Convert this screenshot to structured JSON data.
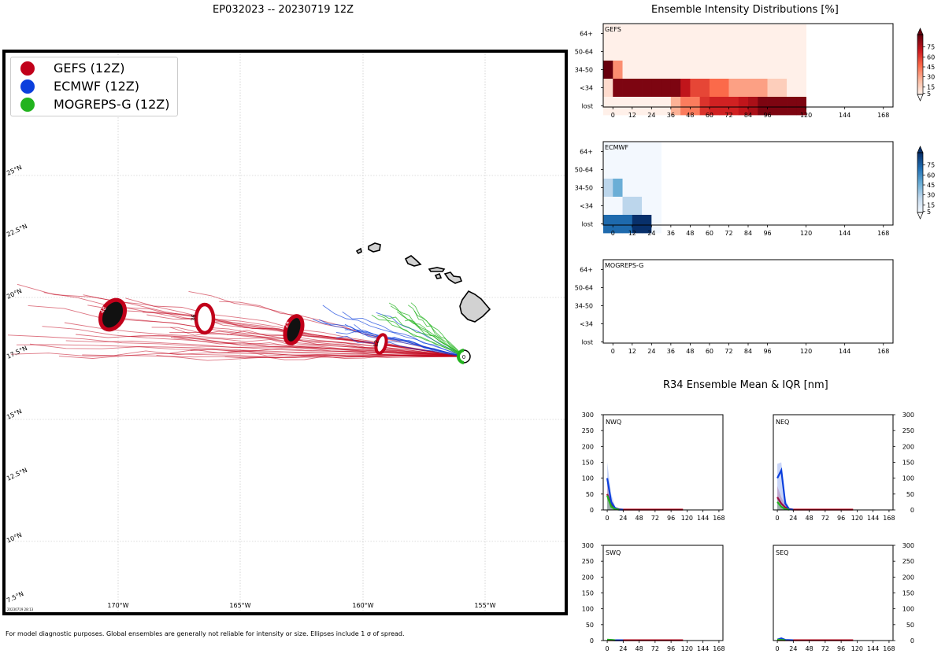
{
  "page": {
    "map_title": "EP032023 -- 20230719 12Z",
    "intensity_title": "Ensemble Intensity Distributions [%]",
    "r34_title": "R34 Ensemble Mean & IQR [nm]",
    "footer_note": "For model diagnostic purposes. Global ensembles are generally not reliable for intensity or size. Ellipses include 1 σ of spread.",
    "map_stamp": "20230719 28:13"
  },
  "legend": [
    {
      "label": "GEFS (12Z)",
      "color": "#c1001a"
    },
    {
      "label": "ECMWF (12Z)",
      "color": "#0b3fdd"
    },
    {
      "label": "MOGREPS-G (12Z)",
      "color": "#22b31e"
    }
  ],
  "map": {
    "lon_labels": [
      "170°W",
      "165°W",
      "160°W",
      "155°W"
    ],
    "lat_labels": [
      "25°N",
      "22.5°N",
      "20°N",
      "17.5°N",
      "15°N",
      "12.5°N",
      "10°N",
      "7.5°N"
    ],
    "forecast_hour_labels": [
      "48",
      "36",
      "24",
      "12",
      "0"
    ]
  },
  "chart_data": [
    {
      "type": "heatmap",
      "panel": "GEFS",
      "title": "Ensemble Intensity Distributions [%]",
      "rows": [
        "64+",
        "50-64",
        "34-50",
        "<34",
        "lost"
      ],
      "x_ticks": [
        0,
        12,
        24,
        36,
        48,
        60,
        72,
        84,
        96,
        120,
        144,
        168
      ],
      "xlim": [
        -6,
        174
      ],
      "x_starts": [
        -6,
        0,
        6,
        12,
        18,
        24,
        30,
        36,
        42,
        48,
        54,
        60,
        66,
        72,
        78,
        84,
        90,
        96,
        102,
        108,
        114
      ],
      "bin_width": 6,
      "values": [
        [
          2,
          2,
          2,
          2,
          2,
          2,
          2,
          2,
          2,
          2,
          2,
          2,
          2,
          2,
          2,
          2,
          2,
          2,
          2,
          2,
          2
        ],
        [
          2,
          2,
          2,
          2,
          2,
          2,
          2,
          2,
          2,
          2,
          2,
          2,
          2,
          2,
          2,
          2,
          2,
          2,
          2,
          2,
          2
        ],
        [
          90,
          35,
          2,
          2,
          2,
          2,
          2,
          2,
          2,
          2,
          2,
          2,
          2,
          2,
          2,
          2,
          2,
          2,
          2,
          2,
          2
        ],
        [
          10,
          85,
          85,
          85,
          85,
          85,
          85,
          85,
          70,
          55,
          55,
          45,
          45,
          30,
          30,
          30,
          30,
          15,
          15,
          2,
          2
        ],
        [
          2,
          2,
          2,
          2,
          2,
          2,
          2,
          25,
          40,
          40,
          60,
          65,
          65,
          65,
          70,
          75,
          85,
          85,
          85,
          85,
          85
        ]
      ],
      "colorbar_ticks": [
        5,
        15,
        30,
        45,
        60,
        75
      ]
    },
    {
      "type": "heatmap",
      "panel": "ECMWF",
      "rows": [
        "64+",
        "50-64",
        "34-50",
        "<34",
        "lost"
      ],
      "x_ticks": [
        0,
        12,
        24,
        36,
        48,
        60,
        72,
        84,
        96,
        120,
        144,
        168
      ],
      "xlim": [
        -6,
        174
      ],
      "x_starts": [
        -6,
        0,
        6,
        12,
        18,
        24
      ],
      "bin_width": 6,
      "values": [
        [
          2,
          2,
          2,
          2,
          2,
          2
        ],
        [
          2,
          2,
          2,
          2,
          2,
          2
        ],
        [
          25,
          45,
          2,
          2,
          2,
          2
        ],
        [
          2,
          2,
          25,
          25,
          2,
          2
        ],
        [
          70,
          70,
          70,
          90,
          90,
          2
        ]
      ],
      "colorbar_ticks": [
        5,
        15,
        30,
        45,
        60,
        75
      ]
    },
    {
      "type": "heatmap",
      "panel": "MOGREPS-G",
      "rows": [
        "64+",
        "50-64",
        "34-50",
        "<34",
        "lost"
      ],
      "x_ticks": [
        0,
        12,
        24,
        36,
        48,
        60,
        72,
        84,
        96,
        120,
        144,
        168
      ],
      "xlim": [
        -6,
        174
      ],
      "values": []
    },
    {
      "type": "line",
      "panel": "NWQ",
      "title": "R34 Ensemble Mean & IQR [nm]",
      "y_side": "left",
      "ylim": [
        0,
        300
      ],
      "y_ticks": [
        0,
        50,
        100,
        150,
        200,
        250,
        300
      ],
      "xlim": [
        -6,
        174
      ],
      "x_ticks": [
        0,
        24,
        48,
        72,
        96,
        120,
        144,
        168
      ],
      "series": [
        {
          "name": "GEFS",
          "x": [
            0,
            6,
            12,
            18,
            24,
            48,
            72,
            96,
            114
          ],
          "y": [
            50,
            15,
            5,
            2,
            1,
            1,
            1,
            1,
            1
          ],
          "iqr_high": [
            95,
            35,
            10,
            5,
            2,
            1,
            1,
            1,
            1
          ]
        },
        {
          "name": "ECMWF",
          "x": [
            0,
            6,
            12,
            18,
            24
          ],
          "y": [
            100,
            25,
            5,
            1,
            1
          ],
          "iqr_high": [
            150,
            50,
            10,
            3,
            1
          ]
        },
        {
          "name": "MOGREPS-G",
          "x": [
            0,
            6,
            12,
            18
          ],
          "y": [
            45,
            10,
            2,
            1
          ],
          "iqr_high": [
            55,
            18,
            5,
            1
          ]
        }
      ]
    },
    {
      "type": "line",
      "panel": "NEQ",
      "y_side": "right",
      "ylim": [
        0,
        300
      ],
      "y_ticks": [
        0,
        50,
        100,
        150,
        200,
        250,
        300
      ],
      "xlim": [
        -6,
        174
      ],
      "x_ticks": [
        0,
        24,
        48,
        72,
        96,
        120,
        144,
        168
      ],
      "series": [
        {
          "name": "GEFS",
          "x": [
            0,
            6,
            12,
            18,
            24,
            48,
            72,
            96,
            114
          ],
          "y": [
            40,
            20,
            8,
            3,
            1,
            1,
            1,
            1,
            1
          ],
          "iqr_high": [
            75,
            40,
            15,
            5,
            2,
            1,
            1,
            1,
            1
          ]
        },
        {
          "name": "ECMWF",
          "x": [
            0,
            6,
            12,
            18,
            24
          ],
          "y": [
            100,
            125,
            20,
            2,
            1
          ],
          "iqr_high": [
            145,
            150,
            35,
            5,
            1
          ]
        },
        {
          "name": "MOGREPS-G",
          "x": [
            0,
            6,
            12,
            18
          ],
          "y": [
            25,
            10,
            2,
            1
          ],
          "iqr_high": [
            35,
            15,
            4,
            1
          ]
        }
      ]
    },
    {
      "type": "line",
      "panel": "SWQ",
      "y_side": "left",
      "ylim": [
        0,
        300
      ],
      "y_ticks": [
        0,
        50,
        100,
        150,
        200,
        250,
        300
      ],
      "xlim": [
        -6,
        174
      ],
      "x_ticks": [
        0,
        24,
        48,
        72,
        96,
        120,
        144,
        168
      ],
      "series": [
        {
          "name": "GEFS",
          "x": [
            0,
            24,
            48,
            72,
            96,
            114
          ],
          "y": [
            1,
            1,
            1,
            1,
            1,
            1
          ],
          "iqr_high": [
            2,
            1,
            1,
            1,
            1,
            1
          ]
        },
        {
          "name": "ECMWF",
          "x": [
            0,
            12,
            24
          ],
          "y": [
            2,
            1,
            1
          ],
          "iqr_high": [
            3,
            1,
            1
          ]
        },
        {
          "name": "MOGREPS-G",
          "x": [
            0,
            6,
            12
          ],
          "y": [
            3,
            2,
            1
          ],
          "iqr_high": [
            4,
            2,
            1
          ]
        }
      ]
    },
    {
      "type": "line",
      "panel": "SEQ",
      "y_side": "right",
      "ylim": [
        0,
        300
      ],
      "y_ticks": [
        0,
        50,
        100,
        150,
        200,
        250,
        300
      ],
      "xlim": [
        -6,
        174
      ],
      "x_ticks": [
        0,
        24,
        48,
        72,
        96,
        120,
        144,
        168
      ],
      "series": [
        {
          "name": "GEFS",
          "x": [
            0,
            24,
            48,
            72,
            96,
            114
          ],
          "y": [
            1,
            1,
            1,
            1,
            1,
            1
          ],
          "iqr_high": [
            2,
            1,
            1,
            1,
            1,
            1
          ]
        },
        {
          "name": "ECMWF",
          "x": [
            0,
            6,
            12,
            24
          ],
          "y": [
            3,
            7,
            2,
            1
          ],
          "iqr_high": [
            5,
            9,
            3,
            1
          ]
        },
        {
          "name": "MOGREPS-G",
          "x": [
            0,
            6,
            12
          ],
          "y": [
            3,
            2,
            1
          ],
          "iqr_high": [
            4,
            2,
            1
          ]
        }
      ]
    }
  ]
}
